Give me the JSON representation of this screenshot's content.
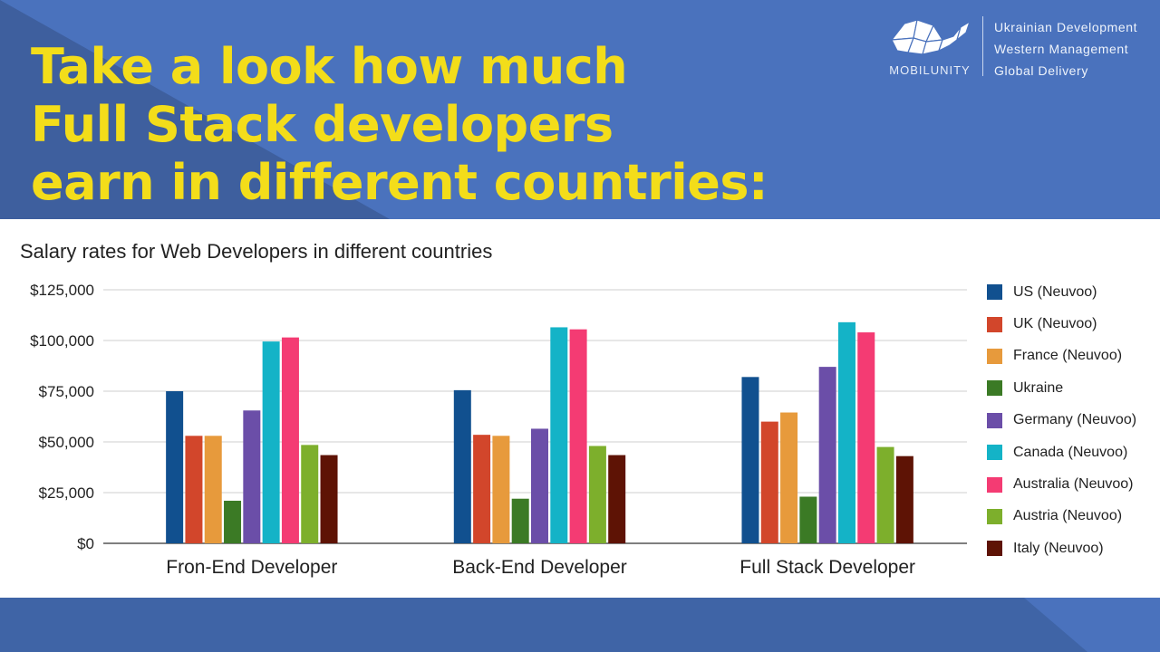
{
  "headline": {
    "lines": [
      "Take a look how much",
      "Full Stack developers",
      "earn in different countries:"
    ],
    "color": "#f3dd1a"
  },
  "brand": {
    "name": "MOBILUNITY",
    "logo_icon": "polygon-whale-icon",
    "tagline": [
      "Ukrainian Development",
      "Western Management",
      "Global Delivery"
    ]
  },
  "colors": {
    "background": "#4a72bd",
    "background_dark": "#3e5f9e",
    "panel": "#ffffff"
  },
  "chart_data": {
    "type": "bar",
    "title": "Salary rates for Web Developers in different countries",
    "xlabel": "",
    "ylabel": "",
    "ylim": [
      0,
      125000
    ],
    "yticks": [
      "$0",
      "$25,000",
      "$50,000",
      "$75,000",
      "$100,000",
      "$125,000"
    ],
    "ytick_values": [
      0,
      25000,
      50000,
      75000,
      100000,
      125000
    ],
    "grid": true,
    "legend_position": "right",
    "categories": [
      "Fron-End Developer",
      "Back-End Developer",
      "Full Stack Developer"
    ],
    "series": [
      {
        "name": "US (Neuvoo)",
        "color": "#11508f",
        "values": [
          75000,
          75500,
          82000
        ]
      },
      {
        "name": "UK (Neuvoo)",
        "color": "#d2462b",
        "values": [
          53000,
          53500,
          60000
        ]
      },
      {
        "name": "France (Neuvoo)",
        "color": "#e79a3c",
        "values": [
          53000,
          53000,
          64500
        ]
      },
      {
        "name": "Ukraine",
        "color": "#3b7a25",
        "values": [
          21000,
          22000,
          23000
        ]
      },
      {
        "name": "Germany (Neuvoo)",
        "color": "#6b4ea8",
        "values": [
          65500,
          56500,
          87000
        ]
      },
      {
        "name": "Canada (Neuvoo)",
        "color": "#14b3c7",
        "values": [
          99500,
          106500,
          109000
        ]
      },
      {
        "name": "Australia (Neuvoo)",
        "color": "#f43b73",
        "values": [
          101500,
          105500,
          104000
        ]
      },
      {
        "name": "Austria (Neuvoo)",
        "color": "#7daf2c",
        "values": [
          48500,
          48000,
          47500
        ]
      },
      {
        "name": "Italy (Neuvoo)",
        "color": "#5e1305",
        "values": [
          43500,
          43500,
          43000
        ]
      }
    ]
  }
}
